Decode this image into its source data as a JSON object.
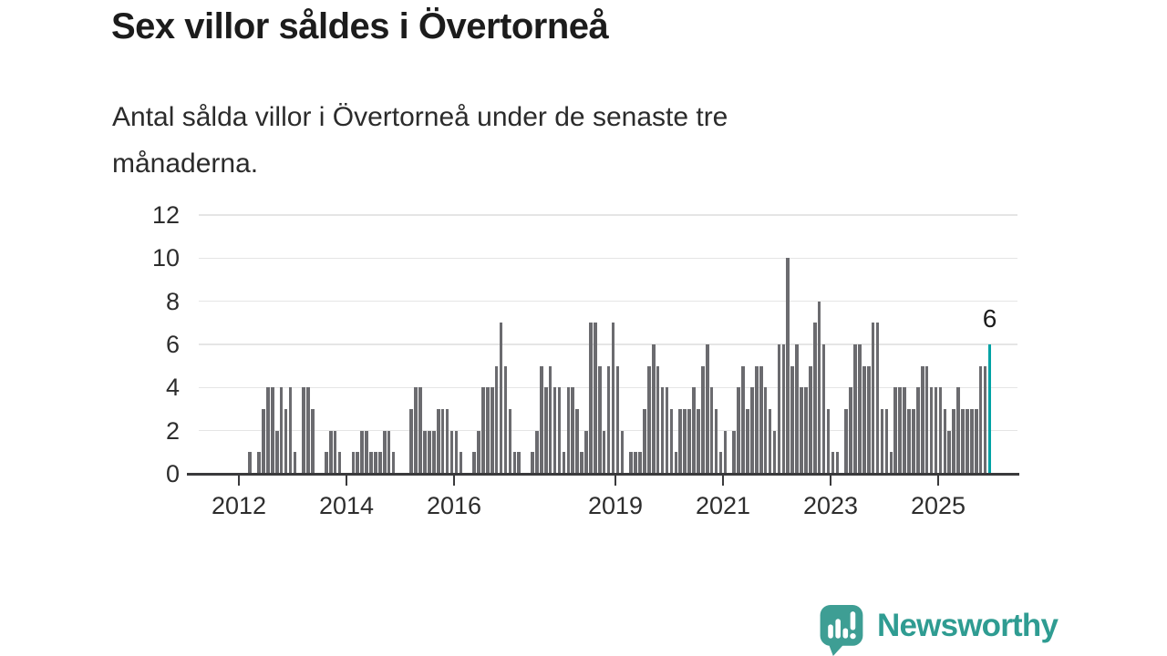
{
  "header": {
    "title": "Sex villor såldes i Övertorneå",
    "subtitle": "Antal sålda villor i Övertorneå under de senaste tre månaderna.",
    "subtitle_lines": [
      "Antal sålda villor i Övertorneå under de senaste tre",
      "månaderna."
    ]
  },
  "chart_data": {
    "type": "bar",
    "title": "Sex villor såldes i Övertorneå",
    "subtitle": "Antal sålda villor i Övertorneå under de senaste tre månaderna.",
    "xlabel": "",
    "ylabel": "",
    "ylim": [
      0,
      12
    ],
    "yticks": [
      0,
      2,
      4,
      6,
      8,
      10,
      12
    ],
    "grid": true,
    "legend": "none",
    "x_tick_labels": [
      "2012",
      "2014",
      "2016",
      "2019",
      "2021",
      "2023",
      "2025"
    ],
    "frequency": "monthly",
    "period": "2012-2025",
    "first_bar_month_offset": 2,
    "values": [
      1,
      0,
      1,
      3,
      4,
      4,
      2,
      4,
      3,
      4,
      1,
      0,
      4,
      4,
      3,
      0,
      0,
      1,
      2,
      2,
      1,
      0,
      0,
      1,
      1,
      2,
      2,
      1,
      1,
      1,
      2,
      2,
      1,
      0,
      0,
      0,
      3,
      4,
      4,
      2,
      2,
      2,
      3,
      3,
      3,
      2,
      2,
      1,
      0,
      0,
      1,
      2,
      4,
      4,
      4,
      5,
      7,
      5,
      3,
      1,
      1,
      0,
      0,
      1,
      2,
      5,
      4,
      5,
      4,
      4,
      1,
      4,
      4,
      3,
      1,
      2,
      7,
      7,
      5,
      2,
      5,
      7,
      5,
      2,
      0,
      1,
      1,
      1,
      3,
      5,
      6,
      5,
      4,
      4,
      3,
      1,
      3,
      3,
      3,
      4,
      3,
      5,
      6,
      4,
      3,
      1,
      2,
      0,
      2,
      4,
      5,
      3,
      4,
      5,
      5,
      4,
      3,
      2,
      6,
      6,
      10,
      5,
      6,
      4,
      4,
      5,
      7,
      8,
      6,
      3,
      1,
      1,
      0,
      3,
      4,
      6,
      6,
      5,
      5,
      7,
      7,
      3,
      3,
      1,
      4,
      4,
      4,
      3,
      3,
      4,
      5,
      5,
      4,
      4,
      4,
      3,
      2,
      3,
      4,
      3,
      3,
      3,
      3,
      5,
      5,
      6
    ],
    "highlight": {
      "index": 165,
      "value": 6,
      "label": "6"
    }
  },
  "footer": {
    "brand": "Newsworthy"
  },
  "colors": {
    "background": "#ffffff",
    "title": "#1c1c1c",
    "subtitle": "#2b2b2b",
    "bar": "#6b6b6f",
    "highlight": "#00a2a4",
    "grid": "#e5e5e5",
    "axis": "#3a3a3c",
    "axis_label": "#2d2d2d",
    "annotation": "#1c1c1c",
    "brand_teal": "#2f9c92",
    "brand_icon": "#3e9e94"
  }
}
